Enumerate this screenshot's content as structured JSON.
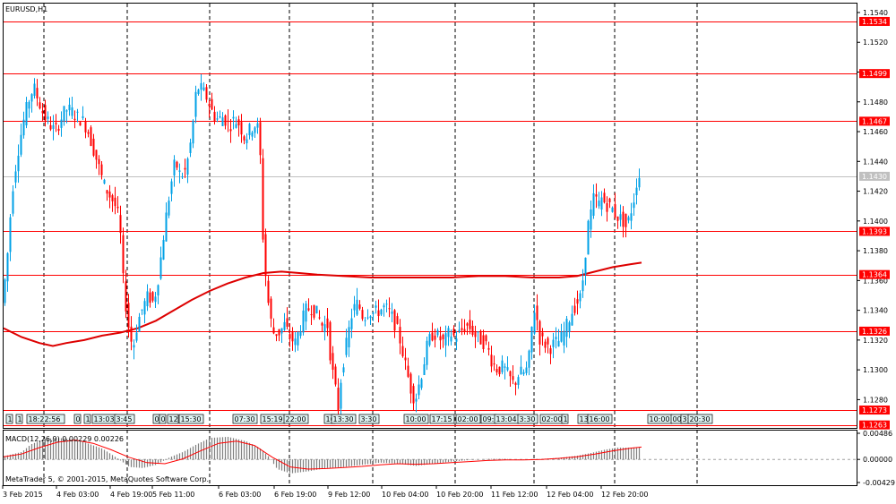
{
  "window": {
    "symbol_label": "EURUSD,H1"
  },
  "indicator": {
    "label": "MACD(12,26,9) 0.00229 0.00226"
  },
  "footer": {
    "copyright": "MetaTrader 5, © 2001-2015, MetaQuotes Software Corp."
  },
  "colors": {
    "bull": "#00a0e6",
    "bear": "#ff0000",
    "level": "#ff0000",
    "ma": "#dd0000",
    "grid": "#000000",
    "current": "#c0c0c0",
    "histogram": "#808080",
    "signal": "#ff0000"
  },
  "chart_data": {
    "type": "candlestick",
    "timeframe": "H1",
    "price_ticks": [
      "1.1540",
      "1.1520",
      "1.1500",
      "1.1480",
      "1.1460",
      "1.1440",
      "1.1420",
      "1.1400",
      "1.1380",
      "1.1360",
      "1.1340",
      "1.1320",
      "1.1300",
      "1.1280"
    ],
    "price_range": [
      1.1261,
      1.1546
    ],
    "x_labels": [
      "3 Feb 2015",
      "4 Feb 03:00",
      "4 Feb 19:00",
      "5 Feb 11:00",
      "6 Feb 03:00",
      "6 Feb 19:00",
      "9 Feb 12:00",
      "10 Feb 04:00",
      "10 Feb 20:00",
      "11 Feb 12:00",
      "12 Feb 04:00",
      "12 Feb 20:00"
    ],
    "levels": [
      "1.1534",
      "1.1499",
      "1.1467",
      "1.1393",
      "1.1364",
      "1.1326",
      "1.1273",
      "1.1263"
    ],
    "current_price": "1.1430",
    "macd_ticks": [
      "0.00486",
      "0.00000",
      "-0.00429"
    ],
    "macd_range": [
      -0.00429,
      0.00486
    ],
    "trade_markers": [
      "1",
      "1",
      "18:22:56",
      "0",
      "1",
      "13:03",
      "3:45",
      "0",
      "0",
      "12",
      "15:30",
      "07:30",
      "15:19",
      "22:00",
      "10",
      "13:30",
      "3:30",
      "10:00",
      "17:15",
      "02:00",
      "09:",
      "13:04",
      "3:30",
      "02:00",
      "1",
      "13",
      "16:00",
      "10:00",
      "00:00",
      "3:",
      "20:30"
    ],
    "price_path": [
      [
        0,
        1.134
      ],
      [
        6,
        1.137
      ],
      [
        12,
        1.142
      ],
      [
        18,
        1.1445
      ],
      [
        24,
        1.1465
      ],
      [
        30,
        1.148
      ],
      [
        36,
        1.149
      ],
      [
        42,
        1.148
      ],
      [
        48,
        1.147
      ],
      [
        54,
        1.1465
      ],
      [
        60,
        1.146
      ],
      [
        66,
        1.1468
      ],
      [
        72,
        1.1475
      ],
      [
        78,
        1.1474
      ],
      [
        84,
        1.147
      ],
      [
        90,
        1.1468
      ],
      [
        96,
        1.1462
      ],
      [
        102,
        1.145
      ],
      [
        108,
        1.1438
      ],
      [
        114,
        1.1425
      ],
      [
        120,
        1.1418
      ],
      [
        126,
        1.1412
      ],
      [
        132,
        1.14
      ],
      [
        136,
        1.136
      ],
      [
        140,
        1.1338
      ],
      [
        144,
        1.132
      ],
      [
        148,
        1.1318
      ],
      [
        152,
        1.1332
      ],
      [
        158,
        1.1342
      ],
      [
        164,
        1.135
      ],
      [
        170,
        1.1345
      ],
      [
        176,
        1.1365
      ],
      [
        182,
        1.1395
      ],
      [
        188,
        1.142
      ],
      [
        194,
        1.144
      ],
      [
        200,
        1.143
      ],
      [
        206,
        1.1434
      ],
      [
        212,
        1.1455
      ],
      [
        218,
        1.149
      ],
      [
        224,
        1.1488
      ],
      [
        230,
        1.1482
      ],
      [
        236,
        1.1472
      ],
      [
        242,
        1.1468
      ],
      [
        248,
        1.147
      ],
      [
        254,
        1.1464
      ],
      [
        260,
        1.1468
      ],
      [
        266,
        1.1465
      ],
      [
        272,
        1.1455
      ],
      [
        278,
        1.1462
      ],
      [
        284,
        1.1465
      ],
      [
        288,
        1.146
      ],
      [
        292,
        1.139
      ],
      [
        296,
        1.1355
      ],
      [
        300,
        1.1335
      ],
      [
        304,
        1.1325
      ],
      [
        310,
        1.1325
      ],
      [
        316,
        1.133
      ],
      [
        322,
        1.1322
      ],
      [
        328,
        1.1318
      ],
      [
        334,
        1.133
      ],
      [
        340,
        1.134
      ],
      [
        346,
        1.1342
      ],
      [
        352,
        1.1338
      ],
      [
        358,
        1.133
      ],
      [
        364,
        1.133
      ],
      [
        368,
        1.1305
      ],
      [
        372,
        1.129
      ],
      [
        376,
        1.1275
      ],
      [
        380,
        1.13
      ],
      [
        386,
        1.132
      ],
      [
        392,
        1.134
      ],
      [
        398,
        1.1345
      ],
      [
        404,
        1.1335
      ],
      [
        410,
        1.134
      ],
      [
        416,
        1.1338
      ],
      [
        422,
        1.134
      ],
      [
        428,
        1.1342
      ],
      [
        434,
        1.1338
      ],
      [
        440,
        1.133
      ],
      [
        446,
        1.1318
      ],
      [
        452,
        1.13
      ],
      [
        458,
        1.1285
      ],
      [
        462,
        1.128
      ],
      [
        466,
        1.129
      ],
      [
        470,
        1.13
      ],
      [
        476,
        1.1318
      ],
      [
        482,
        1.1325
      ],
      [
        488,
        1.1322
      ],
      [
        494,
        1.1318
      ],
      [
        500,
        1.1325
      ],
      [
        506,
        1.1322
      ],
      [
        512,
        1.1325
      ],
      [
        518,
        1.133
      ],
      [
        524,
        1.1328
      ],
      [
        530,
        1.1322
      ],
      [
        536,
        1.132
      ],
      [
        542,
        1.1316
      ],
      [
        548,
        1.1305
      ],
      [
        554,
        1.13
      ],
      [
        560,
        1.1302
      ],
      [
        566,
        1.1296
      ],
      [
        572,
        1.129
      ],
      [
        578,
        1.1298
      ],
      [
        584,
        1.1298
      ],
      [
        588,
        1.1302
      ],
      [
        592,
        1.1328
      ],
      [
        596,
        1.1345
      ],
      [
        600,
        1.1322
      ],
      [
        606,
        1.1318
      ],
      [
        612,
        1.1315
      ],
      [
        618,
        1.1318
      ],
      [
        624,
        1.132
      ],
      [
        630,
        1.1328
      ],
      [
        636,
        1.1338
      ],
      [
        642,
        1.1345
      ],
      [
        646,
        1.1348
      ],
      [
        650,
        1.1365
      ],
      [
        654,
        1.1395
      ],
      [
        658,
        1.1405
      ],
      [
        662,
        1.1418
      ],
      [
        666,
        1.141
      ],
      [
        670,
        1.1415
      ],
      [
        674,
        1.1412
      ],
      [
        678,
        1.141
      ],
      [
        682,
        1.1408
      ],
      [
        686,
        1.1404
      ],
      [
        690,
        1.1402
      ],
      [
        694,
        1.14
      ],
      [
        698,
        1.1395
      ],
      [
        702,
        1.1405
      ],
      [
        706,
        1.1415
      ],
      [
        710,
        1.143
      ]
    ],
    "ma_path": [
      [
        0,
        1.1328
      ],
      [
        20,
        1.1322
      ],
      [
        40,
        1.1318
      ],
      [
        55,
        1.1316
      ],
      [
        70,
        1.1318
      ],
      [
        90,
        1.132
      ],
      [
        110,
        1.1323
      ],
      [
        130,
        1.1325
      ],
      [
        150,
        1.1328
      ],
      [
        170,
        1.1333
      ],
      [
        190,
        1.134
      ],
      [
        210,
        1.1347
      ],
      [
        230,
        1.1353
      ],
      [
        250,
        1.1358
      ],
      [
        270,
        1.1362
      ],
      [
        290,
        1.1365
      ],
      [
        310,
        1.1366
      ],
      [
        330,
        1.1365
      ],
      [
        350,
        1.1364
      ],
      [
        380,
        1.1363
      ],
      [
        410,
        1.1362
      ],
      [
        440,
        1.1362
      ],
      [
        470,
        1.1362
      ],
      [
        500,
        1.1362
      ],
      [
        530,
        1.1363
      ],
      [
        560,
        1.1363
      ],
      [
        590,
        1.1362
      ],
      [
        620,
        1.1362
      ],
      [
        640,
        1.1363
      ],
      [
        660,
        1.1366
      ],
      [
        680,
        1.1369
      ],
      [
        700,
        1.1371
      ],
      [
        712,
        1.1372
      ]
    ],
    "macd_histogram": [
      [
        0,
        0.0006
      ],
      [
        20,
        0.0014
      ],
      [
        30,
        0.0028
      ],
      [
        45,
        0.0038
      ],
      [
        60,
        0.004
      ],
      [
        75,
        0.0038
      ],
      [
        90,
        0.0032
      ],
      [
        110,
        0.002
      ],
      [
        125,
        0.0004
      ],
      [
        140,
        -0.0014
      ],
      [
        155,
        -0.0016
      ],
      [
        170,
        -0.001
      ],
      [
        185,
        0.0004
      ],
      [
        200,
        0.0014
      ],
      [
        215,
        0.0028
      ],
      [
        230,
        0.004
      ],
      [
        250,
        0.0042
      ],
      [
        270,
        0.0034
      ],
      [
        285,
        0.0022
      ],
      [
        295,
        0.0006
      ],
      [
        305,
        -0.0018
      ],
      [
        320,
        -0.0026
      ],
      [
        340,
        -0.0022
      ],
      [
        360,
        -0.0016
      ],
      [
        380,
        -0.0014
      ],
      [
        400,
        -0.001
      ],
      [
        420,
        -0.0006
      ],
      [
        440,
        -0.0008
      ],
      [
        460,
        -0.0012
      ],
      [
        480,
        -0.0008
      ],
      [
        500,
        -0.0004
      ],
      [
        520,
        -0.0001
      ],
      [
        540,
        0.0001
      ],
      [
        560,
        0.0001
      ],
      [
        580,
        -0.0001
      ],
      [
        600,
        0.0001
      ],
      [
        620,
        0.0003
      ],
      [
        640,
        0.0007
      ],
      [
        655,
        0.0012
      ],
      [
        670,
        0.0018
      ],
      [
        685,
        0.0022
      ],
      [
        700,
        0.0022
      ],
      [
        712,
        0.0023
      ]
    ],
    "macd_signal": [
      [
        0,
        0.0005
      ],
      [
        20,
        0.001
      ],
      [
        40,
        0.0022
      ],
      [
        60,
        0.0032
      ],
      [
        80,
        0.0036
      ],
      [
        100,
        0.003
      ],
      [
        120,
        0.0018
      ],
      [
        140,
        0.0004
      ],
      [
        160,
        -0.0006
      ],
      [
        180,
        -0.0008
      ],
      [
        200,
        0.0001
      ],
      [
        220,
        0.0016
      ],
      [
        240,
        0.003
      ],
      [
        260,
        0.0034
      ],
      [
        280,
        0.0026
      ],
      [
        300,
        0.0004
      ],
      [
        320,
        -0.0014
      ],
      [
        340,
        -0.0018
      ],
      [
        360,
        -0.0017
      ],
      [
        380,
        -0.0015
      ],
      [
        400,
        -0.0013
      ],
      [
        420,
        -0.001
      ],
      [
        440,
        -0.0008
      ],
      [
        460,
        -0.0009
      ],
      [
        480,
        -0.0008
      ],
      [
        500,
        -0.0006
      ],
      [
        520,
        -0.0004
      ],
      [
        540,
        -0.0002
      ],
      [
        560,
        -0.0001
      ],
      [
        580,
        -0.0001
      ],
      [
        600,
        0.0
      ],
      [
        620,
        0.0002
      ],
      [
        640,
        0.0005
      ],
      [
        660,
        0.001
      ],
      [
        680,
        0.0016
      ],
      [
        700,
        0.0021
      ],
      [
        712,
        0.0023
      ]
    ]
  }
}
